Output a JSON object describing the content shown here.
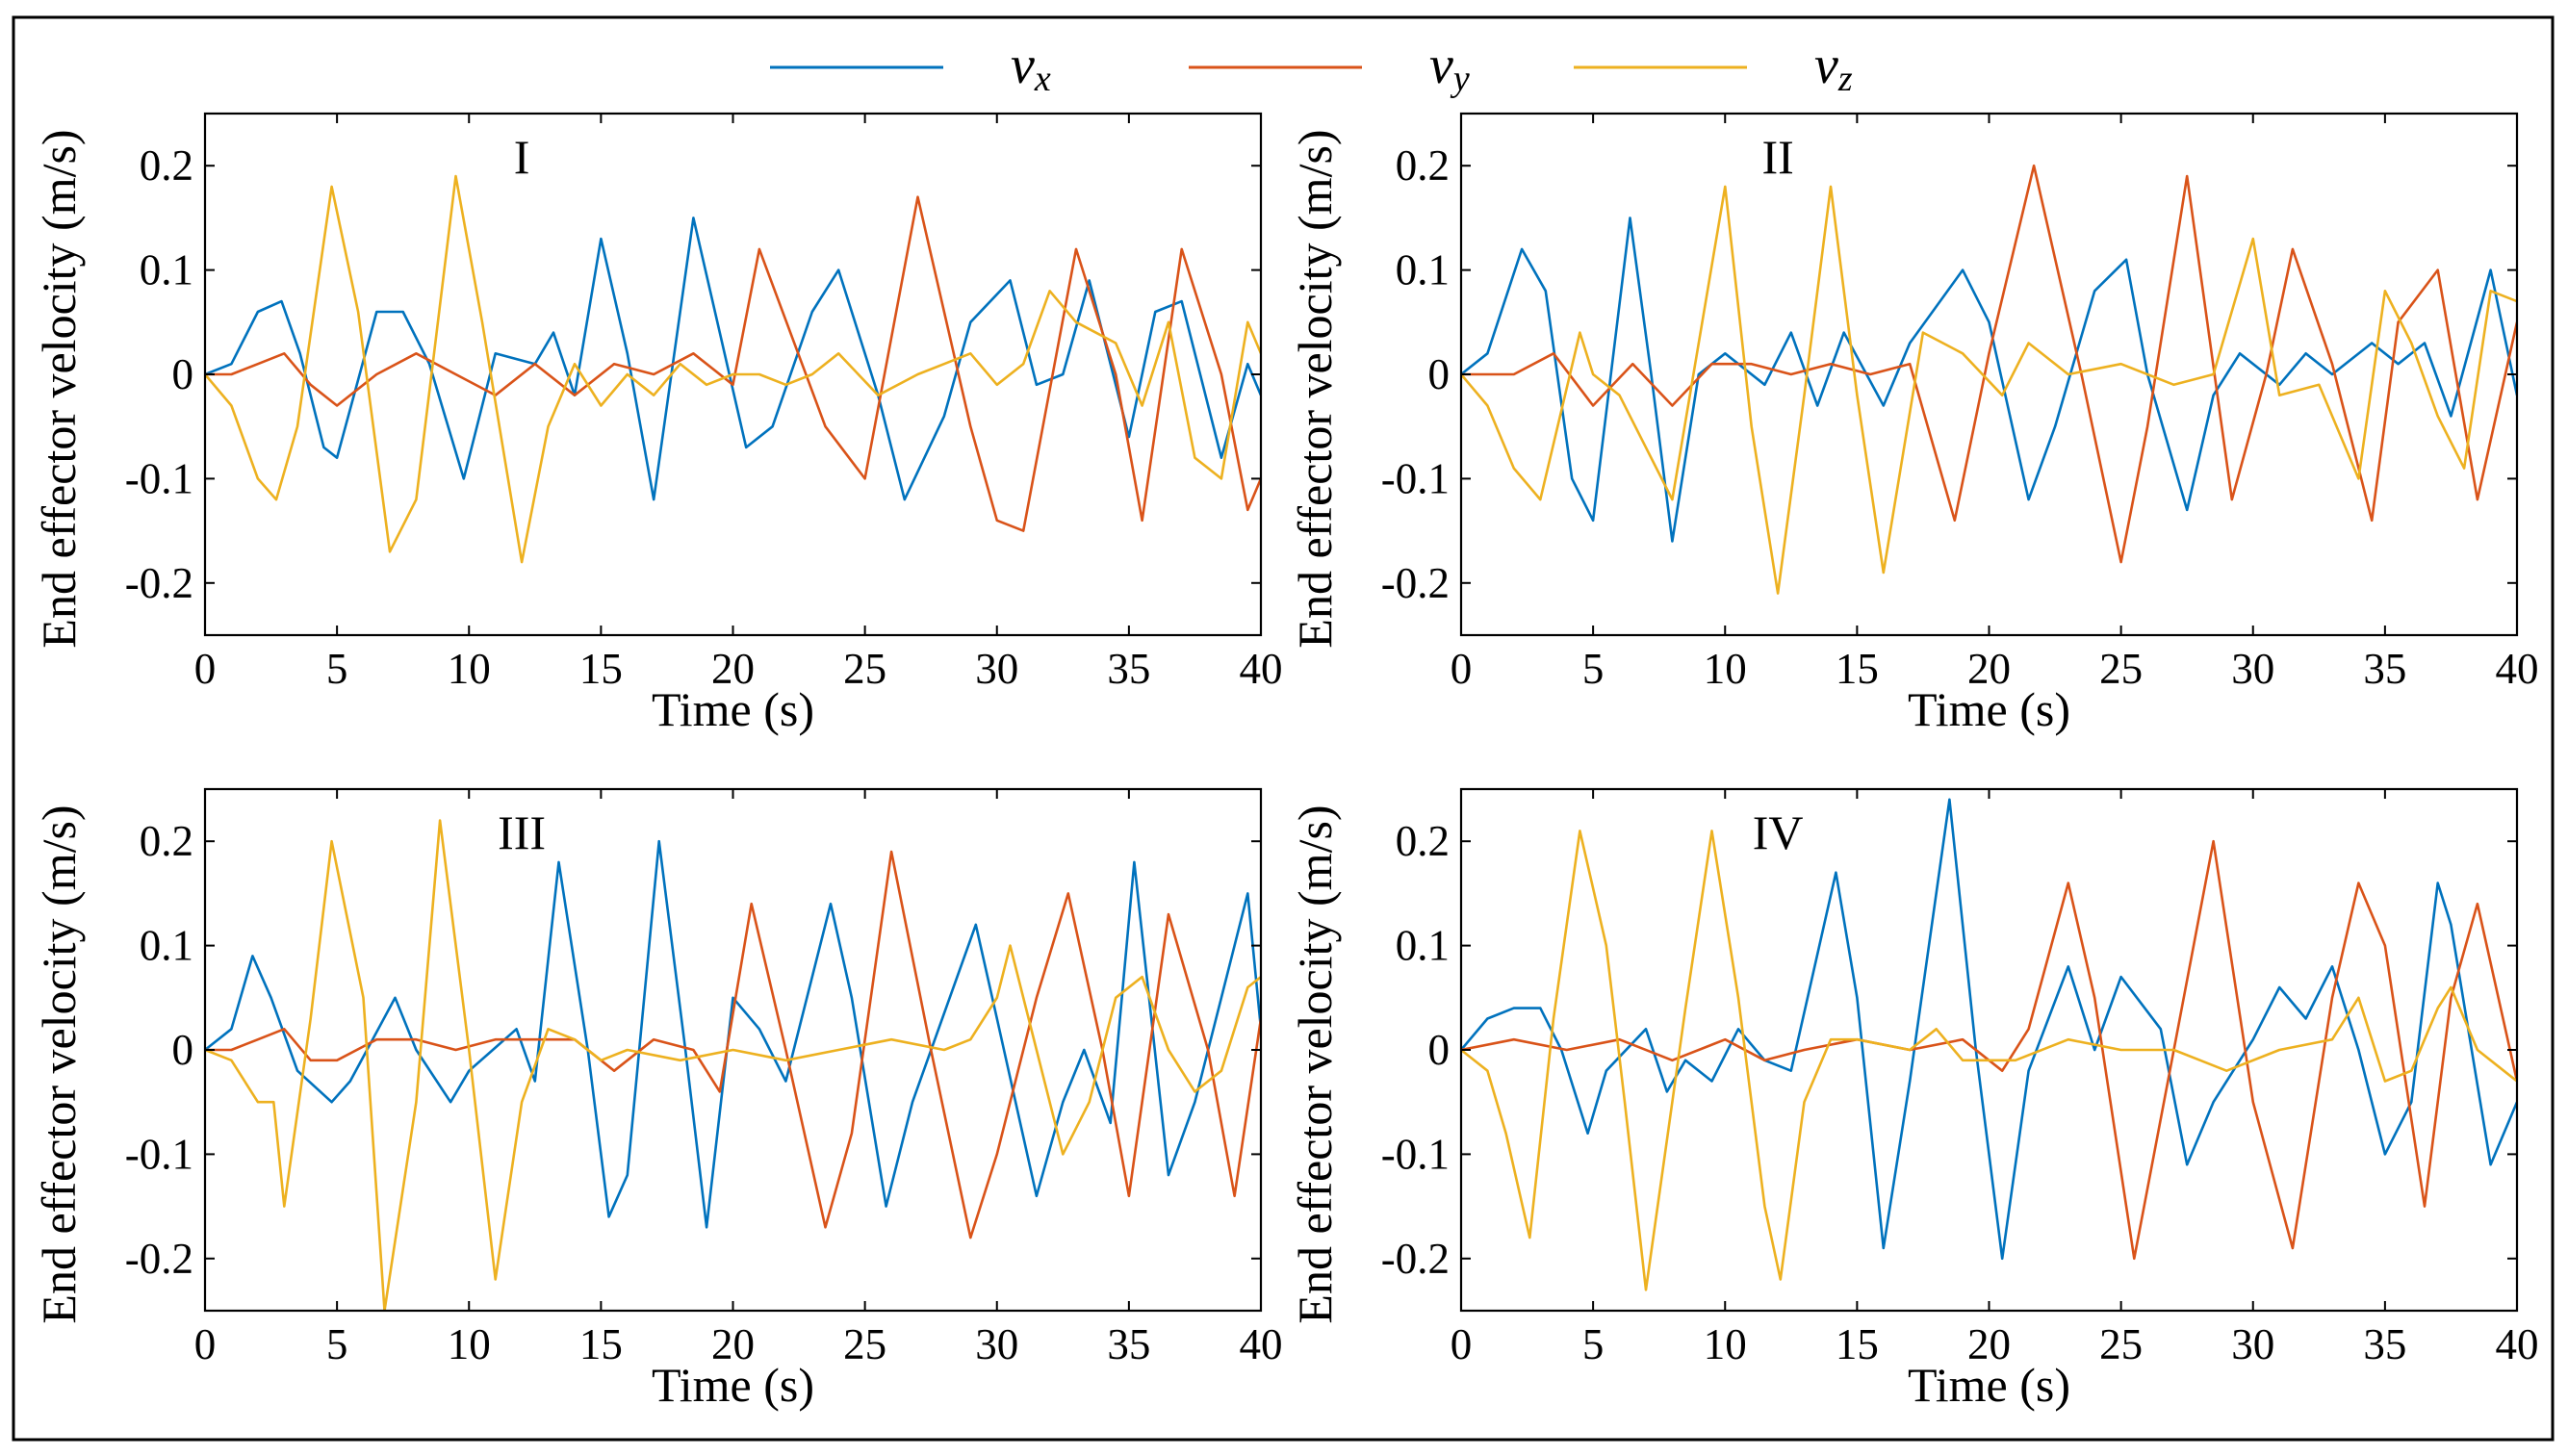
{
  "chart_data": [
    {
      "type": "line",
      "title": "I",
      "xlabel": "Time (s)",
      "ylabel": "End effector velocity (m/s)",
      "xlim": [
        0,
        40
      ],
      "ylim": [
        -0.25,
        0.25
      ],
      "xticks": [
        0,
        5,
        10,
        15,
        20,
        25,
        30,
        35,
        40
      ],
      "yticks": [
        0.2,
        0.1,
        0,
        -0.1,
        -0.2
      ],
      "xtick_labels": [
        "0",
        "5",
        "10",
        "15",
        "20",
        "25",
        "30",
        "35",
        "40"
      ],
      "ytick_labels": [
        "0.2",
        "0.1",
        "0",
        "-0.1",
        "-0.2"
      ],
      "series": [
        {
          "name": "vx",
          "color": "#0072BD",
          "x": [
            0,
            1,
            2,
            2.9,
            3.6,
            4.5,
            5,
            6.5,
            7.5,
            8.5,
            9.8,
            11,
            12.5,
            13.2,
            14,
            15,
            16,
            17,
            18.5,
            19.5,
            20.5,
            21.5,
            23,
            24,
            25.5,
            26.5,
            28,
            29,
            30.5,
            31.5,
            32.5,
            33.5,
            35,
            36,
            37,
            38.5,
            39.5,
            40
          ],
          "y": [
            0,
            0.01,
            0.06,
            0.07,
            0.02,
            -0.07,
            -0.08,
            0.06,
            0.06,
            0.01,
            -0.1,
            0.02,
            0.01,
            0.04,
            -0.02,
            0.13,
            0.02,
            -0.12,
            0.15,
            0.04,
            -0.07,
            -0.05,
            0.06,
            0.1,
            -0.02,
            -0.12,
            -0.04,
            0.05,
            0.09,
            -0.01,
            0.0,
            0.09,
            -0.06,
            0.06,
            0.07,
            -0.08,
            0.01,
            -0.02
          ]
        },
        {
          "name": "vy",
          "color": "#D95319",
          "x": [
            0,
            1,
            2,
            3,
            4,
            5,
            6.5,
            8,
            9.5,
            11,
            12.5,
            14,
            15.5,
            17,
            18.5,
            20,
            21,
            23.5,
            25,
            27,
            29,
            30,
            31,
            33,
            34.5,
            35.5,
            37,
            38.5,
            39.5,
            40
          ],
          "y": [
            0,
            0.0,
            0.01,
            0.02,
            -0.01,
            -0.03,
            0.0,
            0.02,
            0.0,
            -0.02,
            0.01,
            -0.02,
            0.01,
            0.0,
            0.02,
            -0.01,
            0.12,
            -0.05,
            -0.1,
            0.17,
            -0.05,
            -0.14,
            -0.15,
            0.12,
            0.0,
            -0.14,
            0.12,
            0.0,
            -0.13,
            -0.1
          ]
        },
        {
          "name": "vz",
          "color": "#EDB120",
          "x": [
            0,
            1,
            2,
            2.7,
            3.5,
            4.8,
            5.8,
            7,
            8,
            9.5,
            10.5,
            12,
            13,
            14,
            15,
            16,
            17,
            18,
            19,
            20,
            21,
            22,
            23,
            24,
            25.5,
            27,
            28,
            29,
            30,
            31,
            32,
            33,
            34.5,
            35.5,
            36.5,
            37.5,
            38.5,
            39.5,
            40
          ],
          "y": [
            0,
            -0.03,
            -0.1,
            -0.12,
            -0.05,
            0.18,
            0.06,
            -0.17,
            -0.12,
            0.19,
            0.05,
            -0.18,
            -0.05,
            0.01,
            -0.03,
            0.0,
            -0.02,
            0.01,
            -0.01,
            0.0,
            0.0,
            -0.01,
            0.0,
            0.02,
            -0.02,
            0.0,
            0.01,
            0.02,
            -0.01,
            0.01,
            0.08,
            0.05,
            0.03,
            -0.03,
            0.05,
            -0.08,
            -0.1,
            0.05,
            0.02
          ]
        }
      ]
    },
    {
      "type": "line",
      "title": "II",
      "xlabel": "Time (s)",
      "ylabel": "End effector velocity (m/s)",
      "xlim": [
        0,
        40
      ],
      "ylim": [
        -0.25,
        0.25
      ],
      "xticks": [
        0,
        5,
        10,
        15,
        20,
        25,
        30,
        35,
        40
      ],
      "yticks": [
        0.2,
        0.1,
        0,
        -0.1,
        -0.2
      ],
      "xtick_labels": [
        "0",
        "5",
        "10",
        "15",
        "20",
        "25",
        "30",
        "35",
        "40"
      ],
      "ytick_labels": [
        "0.2",
        "0.1",
        "0",
        "-0.1",
        "-0.2"
      ],
      "series": [
        {
          "name": "vx",
          "color": "#0072BD",
          "x": [
            0,
            1,
            2.3,
            3.2,
            4.2,
            5,
            6.4,
            7.2,
            8,
            9,
            10,
            11.5,
            12.5,
            13.5,
            14.5,
            16,
            17,
            19,
            20,
            21.5,
            22.5,
            24,
            25.2,
            26,
            27.5,
            28.5,
            29.5,
            31,
            32,
            33,
            34.5,
            35.5,
            36.5,
            37.5,
            39,
            40
          ],
          "y": [
            0,
            0.02,
            0.12,
            0.08,
            -0.1,
            -0.14,
            0.15,
            0.0,
            -0.16,
            0.0,
            0.02,
            -0.01,
            0.04,
            -0.03,
            0.04,
            -0.03,
            0.03,
            0.1,
            0.05,
            -0.12,
            -0.05,
            0.08,
            0.11,
            0.0,
            -0.13,
            -0.02,
            0.02,
            -0.01,
            0.02,
            0.0,
            0.03,
            0.01,
            0.03,
            -0.04,
            0.1,
            -0.02
          ]
        },
        {
          "name": "vy",
          "color": "#D95319",
          "x": [
            0,
            2,
            3.5,
            5,
            6.5,
            8,
            9.5,
            11,
            12.5,
            14,
            15.5,
            17,
            18.7,
            20,
            21.7,
            23.5,
            25,
            26,
            27.5,
            29.2,
            30.5,
            31.5,
            33,
            34.5,
            35.5,
            37,
            38.5,
            40
          ],
          "y": [
            0,
            0.0,
            0.02,
            -0.03,
            0.01,
            -0.03,
            0.01,
            0.01,
            0.0,
            0.01,
            0.0,
            0.01,
            -0.14,
            0.02,
            0.2,
            0.0,
            -0.18,
            -0.05,
            0.19,
            -0.12,
            0.0,
            0.12,
            0.01,
            -0.14,
            0.05,
            0.1,
            -0.12,
            0.05
          ]
        },
        {
          "name": "vz",
          "color": "#EDB120",
          "x": [
            0,
            1,
            2,
            3,
            4.5,
            5,
            6,
            8,
            10,
            11,
            12,
            13,
            14,
            15,
            16,
            17.5,
            19,
            20.5,
            21.5,
            23,
            25,
            27,
            28.5,
            30,
            31,
            32.5,
            34,
            35,
            36,
            37,
            38,
            39,
            40
          ],
          "y": [
            0,
            -0.03,
            -0.09,
            -0.12,
            0.04,
            0.0,
            -0.02,
            -0.12,
            0.18,
            -0.05,
            -0.21,
            -0.02,
            0.18,
            -0.02,
            -0.19,
            0.04,
            0.02,
            -0.02,
            0.03,
            0.0,
            0.01,
            -0.01,
            0.0,
            0.13,
            -0.02,
            -0.01,
            -0.1,
            0.08,
            0.03,
            -0.04,
            -0.09,
            0.08,
            0.07
          ]
        }
      ]
    },
    {
      "type": "line",
      "title": "III",
      "xlabel": "Time (s)",
      "ylabel": "End effector velocity (m/s)",
      "xlim": [
        0,
        40
      ],
      "ylim": [
        -0.25,
        0.25
      ],
      "xticks": [
        0,
        5,
        10,
        15,
        20,
        25,
        30,
        35,
        40
      ],
      "yticks": [
        0.2,
        0.1,
        0,
        -0.1,
        -0.2
      ],
      "xtick_labels": [
        "0",
        "5",
        "10",
        "15",
        "20",
        "25",
        "30",
        "35",
        "40"
      ],
      "ytick_labels": [
        "0.2",
        "0.1",
        "0",
        "-0.1",
        "-0.2"
      ],
      "series": [
        {
          "name": "vx",
          "color": "#0072BD",
          "x": [
            0,
            1,
            1.8,
            2.5,
            3.5,
            4.8,
            5.5,
            7.2,
            8,
            9.3,
            10,
            11.8,
            12.5,
            13.4,
            14.5,
            15.3,
            16,
            17.2,
            18.2,
            19,
            20,
            21,
            22,
            23.7,
            24.5,
            25.8,
            26.8,
            29.2,
            30,
            31.5,
            32.5,
            33.3,
            34.3,
            35.2,
            36.5,
            37.5,
            38.5,
            39.5,
            40
          ],
          "y": [
            0,
            0.02,
            0.09,
            0.05,
            -0.02,
            -0.05,
            -0.03,
            0.05,
            0.0,
            -0.05,
            -0.02,
            0.02,
            -0.03,
            0.18,
            0.0,
            -0.16,
            -0.12,
            0.2,
            0.0,
            -0.17,
            0.05,
            0.02,
            -0.03,
            0.14,
            0.05,
            -0.15,
            -0.05,
            0.12,
            0.03,
            -0.14,
            -0.05,
            0.0,
            -0.07,
            0.18,
            -0.12,
            -0.05,
            0.05,
            0.15,
            0.02
          ]
        },
        {
          "name": "vy",
          "color": "#D95319",
          "x": [
            0,
            1,
            2,
            3,
            4,
            5,
            6.5,
            8,
            9.5,
            11,
            12.5,
            14,
            15.5,
            17,
            18.5,
            19.5,
            20.7,
            22,
            23.5,
            24.5,
            26,
            27.5,
            29,
            30,
            31.5,
            32.7,
            34,
            35,
            36.5,
            38,
            39,
            40
          ],
          "y": [
            0,
            0.0,
            0.01,
            0.02,
            -0.01,
            -0.01,
            0.01,
            0.01,
            0.0,
            0.01,
            0.01,
            0.01,
            -0.02,
            0.01,
            0.0,
            -0.04,
            0.14,
            0.0,
            -0.17,
            -0.08,
            0.19,
            0.0,
            -0.18,
            -0.1,
            0.05,
            0.15,
            0.0,
            -0.14,
            0.13,
            0.0,
            -0.14,
            0.03
          ]
        },
        {
          "name": "vz",
          "color": "#EDB120",
          "x": [
            0,
            1,
            2,
            2.6,
            3,
            4,
            4.8,
            6,
            6.8,
            8,
            8.9,
            10,
            11,
            12,
            13,
            14,
            15,
            16,
            18,
            20,
            22,
            24,
            26,
            28,
            29,
            30,
            30.5,
            31.5,
            32.5,
            33.5,
            34.5,
            35.5,
            36.5,
            37.5,
            38.5,
            39.5,
            40
          ],
          "y": [
            0,
            -0.01,
            -0.05,
            -0.05,
            -0.15,
            0.03,
            0.2,
            0.05,
            -0.25,
            -0.05,
            0.22,
            0.0,
            -0.22,
            -0.05,
            0.02,
            0.01,
            -0.01,
            0.0,
            -0.01,
            0.0,
            -0.01,
            0.0,
            0.01,
            0.0,
            0.01,
            0.05,
            0.1,
            0.0,
            -0.1,
            -0.05,
            0.05,
            0.07,
            0.0,
            -0.04,
            -0.02,
            0.06,
            0.07
          ]
        }
      ]
    },
    {
      "type": "line",
      "title": "IV",
      "xlabel": "Time (s)",
      "ylabel": "End effector velocity (m/s)",
      "xlim": [
        0,
        40
      ],
      "ylim": [
        -0.25,
        0.25
      ],
      "xticks": [
        0,
        5,
        10,
        15,
        20,
        25,
        30,
        35,
        40
      ],
      "yticks": [
        0.2,
        0.1,
        0,
        -0.1,
        -0.2
      ],
      "xtick_labels": [
        "0",
        "5",
        "10",
        "15",
        "20",
        "25",
        "30",
        "35",
        "40"
      ],
      "ytick_labels": [
        "0.2",
        "0.1",
        "0",
        "-0.1",
        "-0.2"
      ],
      "series": [
        {
          "name": "vx",
          "color": "#0072BD",
          "x": [
            0,
            1,
            2,
            3,
            3.8,
            4.8,
            5.5,
            7,
            7.8,
            8.5,
            9.5,
            10.5,
            11.5,
            12.5,
            14.2,
            15,
            16,
            17,
            18.5,
            19.5,
            20.5,
            21.5,
            23,
            24,
            25,
            26.5,
            27.5,
            28.5,
            30,
            31,
            32,
            33,
            34,
            35,
            36,
            37,
            37.5,
            39,
            40
          ],
          "y": [
            0,
            0.03,
            0.04,
            0.04,
            0.0,
            -0.08,
            -0.02,
            0.02,
            -0.04,
            -0.01,
            -0.03,
            0.02,
            -0.01,
            -0.02,
            0.17,
            0.05,
            -0.19,
            -0.03,
            0.24,
            0.0,
            -0.2,
            -0.02,
            0.08,
            0.0,
            0.07,
            0.02,
            -0.11,
            -0.05,
            0.01,
            0.06,
            0.03,
            0.08,
            0.0,
            -0.1,
            -0.05,
            0.16,
            0.12,
            -0.11,
            -0.05
          ]
        },
        {
          "name": "vy",
          "color": "#D95319",
          "x": [
            0,
            2,
            4,
            6,
            8,
            10,
            11.5,
            13,
            15,
            17,
            19,
            20.5,
            21.5,
            23,
            24,
            25.5,
            27,
            28.5,
            30,
            31.5,
            33,
            34,
            35,
            36.5,
            37.5,
            38.5,
            40
          ],
          "y": [
            0,
            0.01,
            0.0,
            0.01,
            -0.01,
            0.01,
            -0.01,
            0.0,
            0.01,
            0.0,
            0.01,
            -0.02,
            0.02,
            0.16,
            0.05,
            -0.2,
            0.0,
            0.2,
            -0.05,
            -0.19,
            0.05,
            0.16,
            0.1,
            -0.15,
            0.05,
            0.14,
            -0.03
          ]
        },
        {
          "name": "vz",
          "color": "#EDB120",
          "x": [
            0,
            1,
            1.7,
            2.6,
            3.5,
            4.5,
            5.5,
            6.2,
            7,
            8.5,
            9.5,
            10.5,
            11.5,
            12.1,
            13,
            14,
            15,
            17,
            18,
            19,
            21,
            23,
            25,
            27,
            29,
            31,
            33,
            34,
            35,
            36,
            37,
            37.5,
            38.5,
            39.5,
            40
          ],
          "y": [
            0,
            -0.02,
            -0.08,
            -0.18,
            0.03,
            0.21,
            0.1,
            -0.05,
            -0.23,
            0.04,
            0.21,
            0.05,
            -0.15,
            -0.22,
            -0.05,
            0.01,
            0.01,
            0.0,
            0.02,
            -0.01,
            -0.01,
            0.01,
            0.0,
            0.0,
            -0.02,
            0.0,
            0.01,
            0.05,
            -0.03,
            -0.02,
            0.04,
            0.06,
            0.0,
            -0.02,
            -0.03
          ]
        }
      ]
    }
  ],
  "legend": {
    "placement": "top-center",
    "entries": [
      {
        "label": "v",
        "sub": "x",
        "color": "#0072BD"
      },
      {
        "label": "v",
        "sub": "y",
        "color": "#D95319"
      },
      {
        "label": "v",
        "sub": "z",
        "color": "#EDB120"
      }
    ]
  }
}
